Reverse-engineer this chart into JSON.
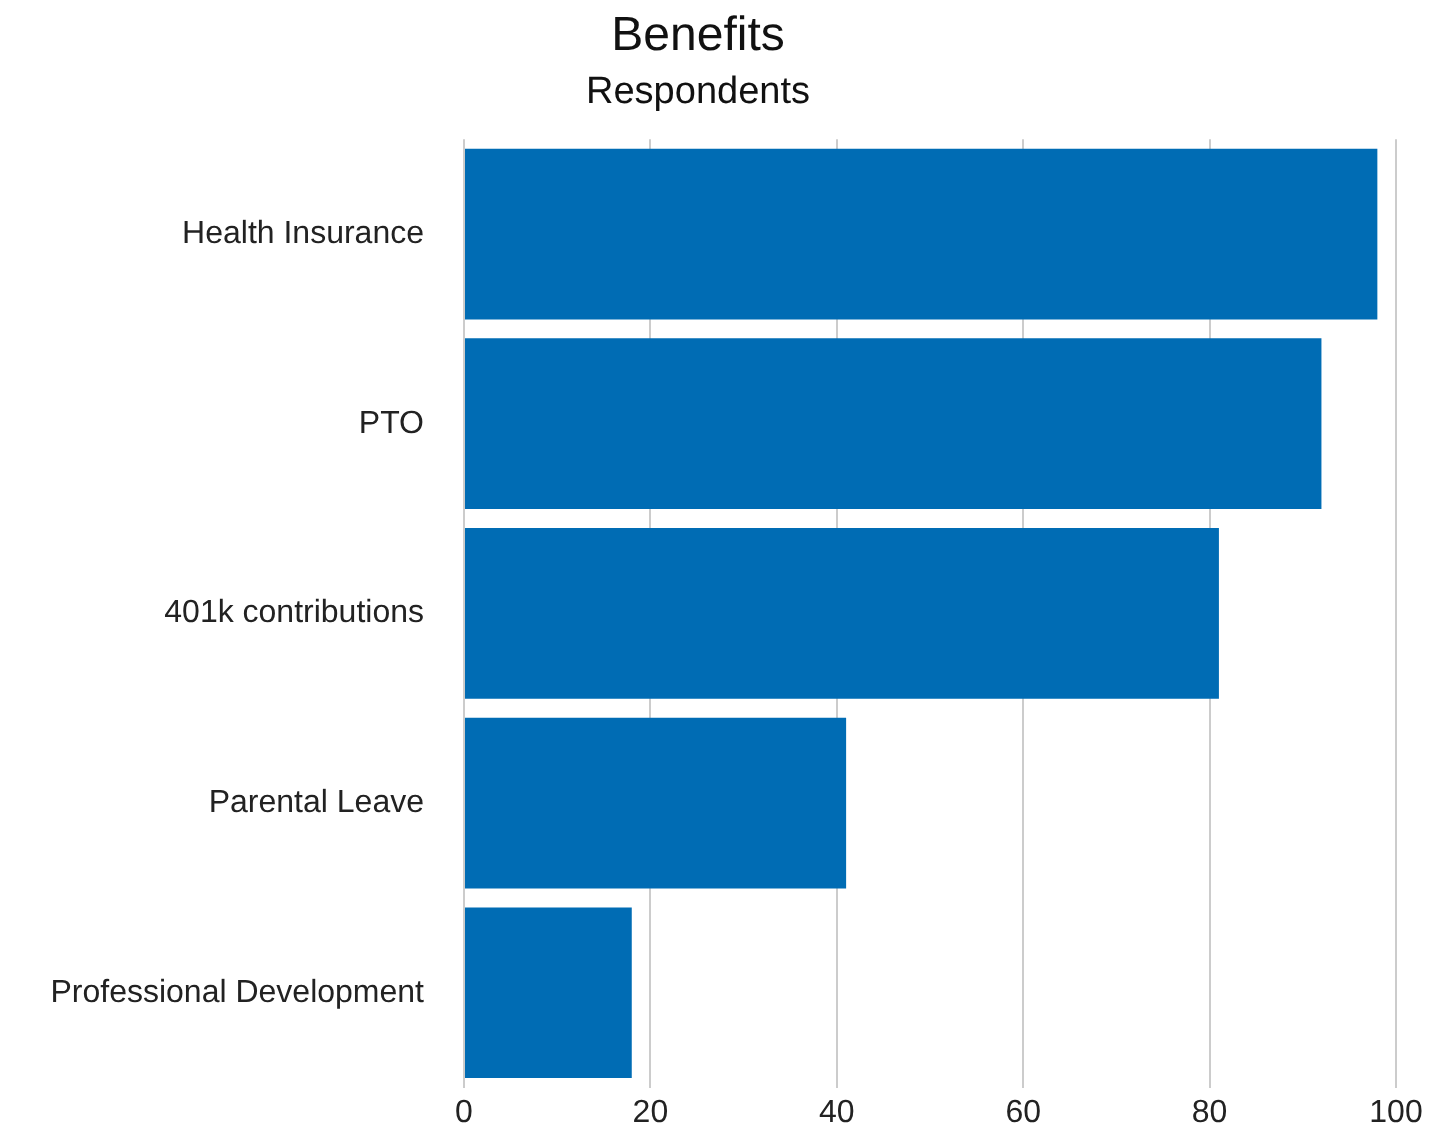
{
  "chart_data": {
    "type": "bar",
    "orientation": "horizontal",
    "title": "Benefits",
    "subtitle": "Respondents",
    "categories": [
      "Health Insurance",
      "PTO",
      "401k contributions",
      "Parental Leave",
      "Professional Development"
    ],
    "values": [
      98,
      92,
      81,
      41,
      18
    ],
    "color": "#006cb4",
    "xlim": [
      0,
      100
    ],
    "xticks": [
      0,
      20,
      40,
      60,
      80,
      100
    ],
    "grid": "x",
    "legend": false
  }
}
